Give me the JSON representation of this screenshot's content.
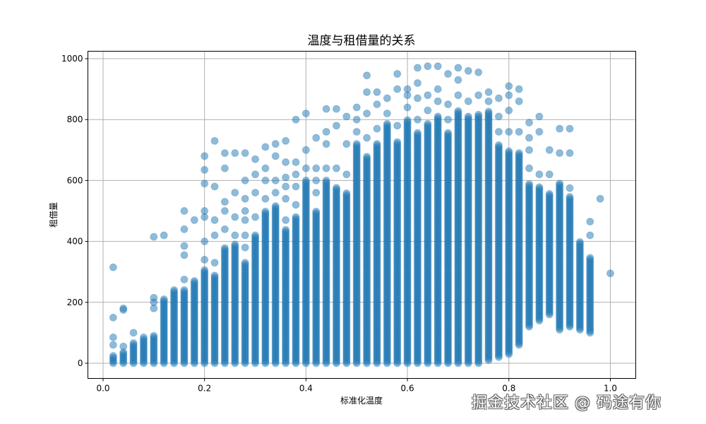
{
  "chart_data": {
    "type": "scatter",
    "title": "温度与租借量的关系",
    "xlabel": "标准化温度",
    "ylabel": "租借量",
    "xlim": [
      -0.03,
      1.05
    ],
    "ylim": [
      -50,
      1025
    ],
    "xticks": [
      "0.0",
      "0.2",
      "0.4",
      "0.6",
      "0.8",
      "1.0"
    ],
    "yticks": [
      "0",
      "200",
      "400",
      "600",
      "800",
      "1000"
    ],
    "grid": true,
    "marker_color": "#1f77b4",
    "marker_alpha": 0.5,
    "columns": [
      {
        "x": 0.02,
        "dense": [
          0,
          25
        ],
        "outliers": [
          60,
          85,
          150,
          315
        ]
      },
      {
        "x": 0.04,
        "dense": [
          0,
          40
        ],
        "outliers": [
          55,
          175,
          180
        ]
      },
      {
        "x": 0.06,
        "dense": [
          0,
          70
        ],
        "outliers": [
          100
        ]
      },
      {
        "x": 0.08,
        "dense": [
          0,
          80
        ],
        "outliers": [
          85
        ]
      },
      {
        "x": 0.1,
        "dense": [
          0,
          95
        ],
        "outliers": [
          180,
          200,
          215,
          415
        ]
      },
      {
        "x": 0.12,
        "dense": [
          0,
          210
        ],
        "outliers": [
          420
        ]
      },
      {
        "x": 0.14,
        "dense": [
          0,
          245
        ],
        "outliers": []
      },
      {
        "x": 0.16,
        "dense": [
          0,
          240
        ],
        "outliers": [
          275,
          355,
          385,
          440,
          500
        ]
      },
      {
        "x": 0.18,
        "dense": [
          0,
          275
        ],
        "outliers": [
          470
        ]
      },
      {
        "x": 0.2,
        "dense": [
          0,
          310
        ],
        "outliers": [
          340,
          400,
          480,
          500,
          590,
          635,
          680
        ]
      },
      {
        "x": 0.22,
        "dense": [
          0,
          290
        ],
        "outliers": [
          330,
          420,
          470,
          580,
          730
        ]
      },
      {
        "x": 0.24,
        "dense": [
          0,
          380
        ],
        "outliers": [
          440,
          500,
          530,
          640,
          690
        ]
      },
      {
        "x": 0.26,
        "dense": [
          0,
          390
        ],
        "outliers": [
          420,
          480,
          560,
          690
        ]
      },
      {
        "x": 0.28,
        "dense": [
          0,
          330
        ],
        "outliers": [
          380,
          420,
          470,
          500,
          540,
          600,
          690
        ]
      },
      {
        "x": 0.3,
        "dense": [
          0,
          420
        ],
        "outliers": [
          480,
          560,
          620,
          670
        ]
      },
      {
        "x": 0.32,
        "dense": [
          0,
          500
        ],
        "outliers": [
          540,
          600,
          640,
          710
        ]
      },
      {
        "x": 0.34,
        "dense": [
          0,
          520
        ],
        "outliers": [
          560,
          600,
          680,
          720
        ]
      },
      {
        "x": 0.36,
        "dense": [
          0,
          440
        ],
        "outliers": [
          470,
          540,
          580,
          610,
          660,
          730
        ]
      },
      {
        "x": 0.38,
        "dense": [
          0,
          480
        ],
        "outliers": [
          520,
          580,
          620,
          660,
          800
        ]
      },
      {
        "x": 0.4,
        "dense": [
          0,
          600
        ],
        "outliers": [
          640,
          700,
          820
        ]
      },
      {
        "x": 0.42,
        "dense": [
          0,
          500
        ],
        "outliers": [
          560,
          600,
          640,
          740
        ]
      },
      {
        "x": 0.44,
        "dense": [
          0,
          600
        ],
        "outliers": [
          640,
          720,
          760,
          835
        ]
      },
      {
        "x": 0.46,
        "dense": [
          0,
          580
        ],
        "outliers": [
          640,
          780,
          835
        ]
      },
      {
        "x": 0.48,
        "dense": [
          0,
          560
        ],
        "outliers": [
          620,
          720,
          810
        ]
      },
      {
        "x": 0.5,
        "dense": [
          0,
          720
        ],
        "outliers": [
          760,
          800,
          840
        ]
      },
      {
        "x": 0.52,
        "dense": [
          0,
          680
        ],
        "outliers": [
          740,
          820,
          890,
          945
        ]
      },
      {
        "x": 0.54,
        "dense": [
          0,
          720
        ],
        "outliers": [
          770,
          850,
          890
        ]
      },
      {
        "x": 0.56,
        "dense": [
          0,
          790
        ],
        "outliers": [
          820,
          870
        ]
      },
      {
        "x": 0.58,
        "dense": [
          0,
          730
        ],
        "outliers": [
          780,
          900,
          950
        ]
      },
      {
        "x": 0.6,
        "dense": [
          0,
          800
        ],
        "outliers": [
          840,
          880,
          900
        ]
      },
      {
        "x": 0.62,
        "dense": [
          0,
          760
        ],
        "outliers": [
          800,
          870,
          920,
          970
        ]
      },
      {
        "x": 0.64,
        "dense": [
          0,
          790
        ],
        "outliers": [
          830,
          880,
          975
        ]
      },
      {
        "x": 0.66,
        "dense": [
          0,
          810
        ],
        "outliers": [
          860,
          900,
          975
        ]
      },
      {
        "x": 0.68,
        "dense": [
          0,
          760
        ],
        "outliers": [
          800,
          850,
          950
        ]
      },
      {
        "x": 0.7,
        "dense": [
          0,
          830
        ],
        "outliers": [
          880,
          930,
          970
        ]
      },
      {
        "x": 0.72,
        "dense": [
          0,
          810
        ],
        "outliers": [
          860,
          960
        ]
      },
      {
        "x": 0.74,
        "dense": [
          0,
          820
        ],
        "outliers": [
          880,
          955
        ]
      },
      {
        "x": 0.76,
        "dense": [
          10,
          830
        ],
        "outliers": [
          860,
          890
        ]
      },
      {
        "x": 0.78,
        "dense": [
          20,
          720
        ],
        "outliers": [
          760,
          810,
          870
        ]
      },
      {
        "x": 0.8,
        "dense": [
          30,
          700
        ],
        "outliers": [
          760,
          830,
          880,
          910
        ]
      },
      {
        "x": 0.82,
        "dense": [
          60,
          690
        ],
        "outliers": [
          760,
          860,
          900
        ]
      },
      {
        "x": 0.84,
        "dense": [
          120,
          590
        ],
        "outliers": [
          640,
          700,
          740,
          790
        ]
      },
      {
        "x": 0.86,
        "dense": [
          140,
          580
        ],
        "outliers": [
          620,
          760,
          810
        ]
      },
      {
        "x": 0.88,
        "dense": [
          160,
          560
        ],
        "outliers": [
          620,
          700
        ]
      },
      {
        "x": 0.9,
        "dense": [
          110,
          590
        ],
        "outliers": [
          690,
          770
        ]
      },
      {
        "x": 0.92,
        "dense": [
          120,
          550
        ],
        "outliers": [
          575,
          690,
          770
        ]
      },
      {
        "x": 0.94,
        "dense": [
          110,
          400
        ],
        "outliers": []
      },
      {
        "x": 0.96,
        "dense": [
          100,
          350
        ],
        "outliers": [
          420,
          465
        ]
      },
      {
        "x": 0.98,
        "dense": [],
        "outliers": [
          540
        ]
      },
      {
        "x": 1.0,
        "dense": [],
        "outliers": [
          295
        ]
      }
    ]
  },
  "watermark": "掘金技术社区 @ 码途有你"
}
